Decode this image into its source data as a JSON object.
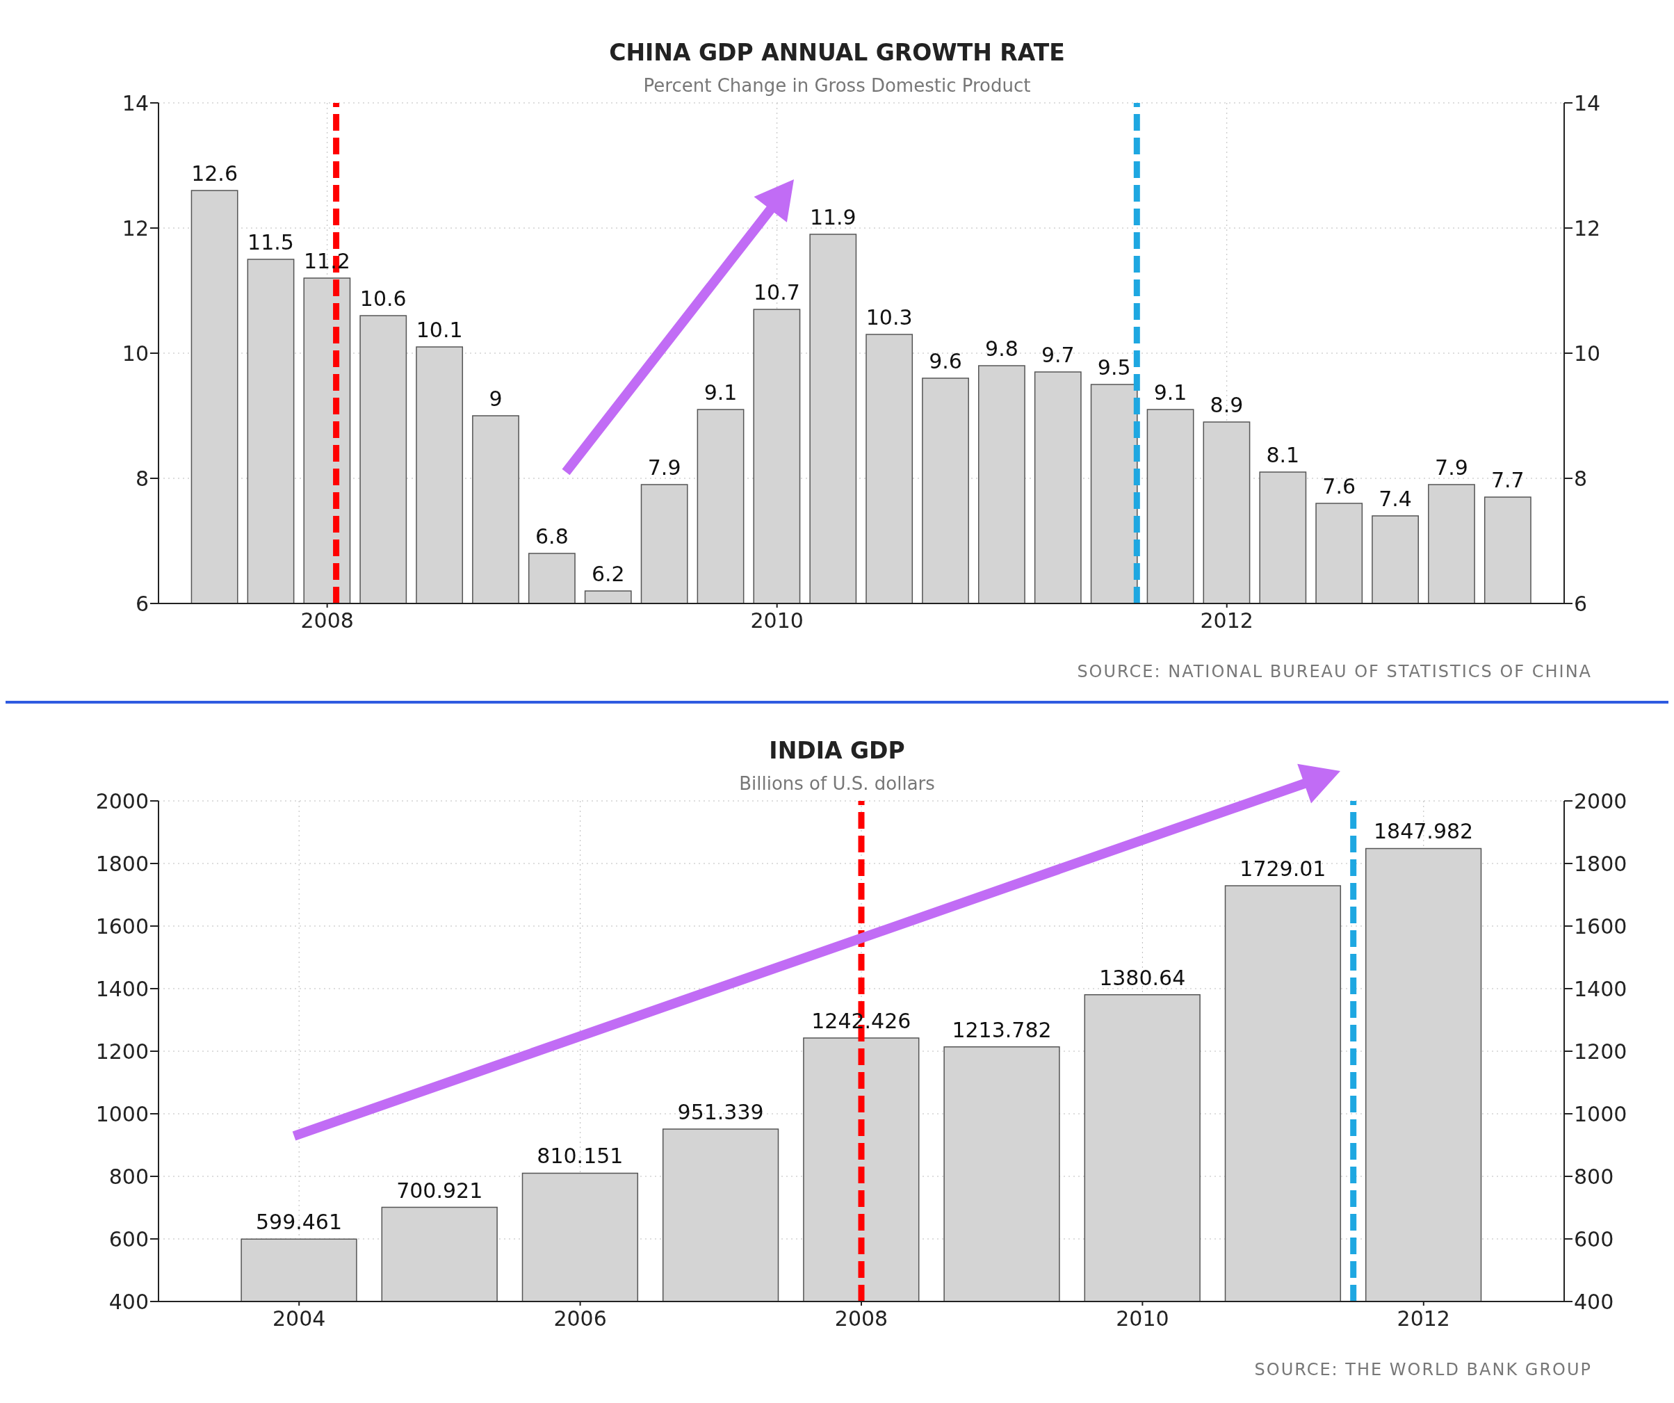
{
  "chart_data": [
    {
      "type": "bar",
      "title": "CHINA GDP ANNUAL GROWTH RATE",
      "subtitle": "Percent Change in Gross Domestic Product",
      "x": [
        2007.5,
        2007.75,
        2008,
        2008.25,
        2008.5,
        2008.75,
        2009,
        2009.25,
        2009.5,
        2009.75,
        2010,
        2010.25,
        2010.5,
        2010.75,
        2011,
        2011.25,
        2011.5,
        2011.75,
        2012,
        2012.25,
        2012.5,
        2012.75,
        2013,
        2013.25
      ],
      "values": [
        12.6,
        11.5,
        11.2,
        10.6,
        10.1,
        9,
        6.8,
        6.2,
        7.9,
        9.1,
        10.7,
        11.9,
        10.3,
        9.6,
        9.8,
        9.7,
        9.5,
        9.1,
        8.9,
        8.1,
        7.6,
        7.4,
        7.9,
        7.7
      ],
      "color": "#d4d4d4",
      "data_labels": true,
      "xlim": [
        2007.25,
        2013.5
      ],
      "xticks": [
        2008,
        2010,
        2012
      ],
      "ylim": [
        6,
        14
      ],
      "yticks": [
        6,
        8,
        10,
        12,
        14
      ],
      "y2lim": [
        6,
        14
      ],
      "y2ticks": [
        6,
        8,
        10,
        12,
        14
      ],
      "grid": true,
      "ref_lines": [
        {
          "axis": "x",
          "value": 2008.04,
          "color": "#ff0000",
          "line_style": "dashed"
        },
        {
          "axis": "x",
          "value": 2011.6,
          "color": "#1ea7e1",
          "line_style": "dashed"
        }
      ],
      "annotations": [
        "SOURCE: NATIONAL BUREAU OF STATISTICS OF CHINA"
      ]
    },
    {
      "type": "bar",
      "title": "INDIA GDP",
      "subtitle": "Billions of U.S. dollars",
      "x": [
        2004,
        2005,
        2006,
        2007,
        2008,
        2009,
        2010,
        2011,
        2012
      ],
      "values": [
        599.461,
        700.921,
        810.151,
        951.339,
        1242.426,
        1213.782,
        1380.64,
        1729.01,
        1847.982
      ],
      "color": "#d4d4d4",
      "data_labels": true,
      "xlim": [
        2003,
        2013
      ],
      "xticks": [
        2004,
        2006,
        2008,
        2010,
        2012
      ],
      "ylim": [
        400,
        2000
      ],
      "yticks": [
        400,
        600,
        800,
        1000,
        1200,
        1400,
        1600,
        1800,
        2000
      ],
      "y2lim": [
        400,
        2000
      ],
      "y2ticks": [
        400,
        600,
        800,
        1000,
        1200,
        1400,
        1600,
        1800,
        2000
      ],
      "grid": true,
      "ref_lines": [
        {
          "axis": "x",
          "value": 2008,
          "color": "#ff0000",
          "line_style": "dashed"
        },
        {
          "axis": "x",
          "value": 2011.5,
          "color": "#1ea7e1",
          "line_style": "dashed"
        }
      ],
      "annotations": [
        "SOURCE: THE WORLD BANK GROUP"
      ]
    }
  ]
}
